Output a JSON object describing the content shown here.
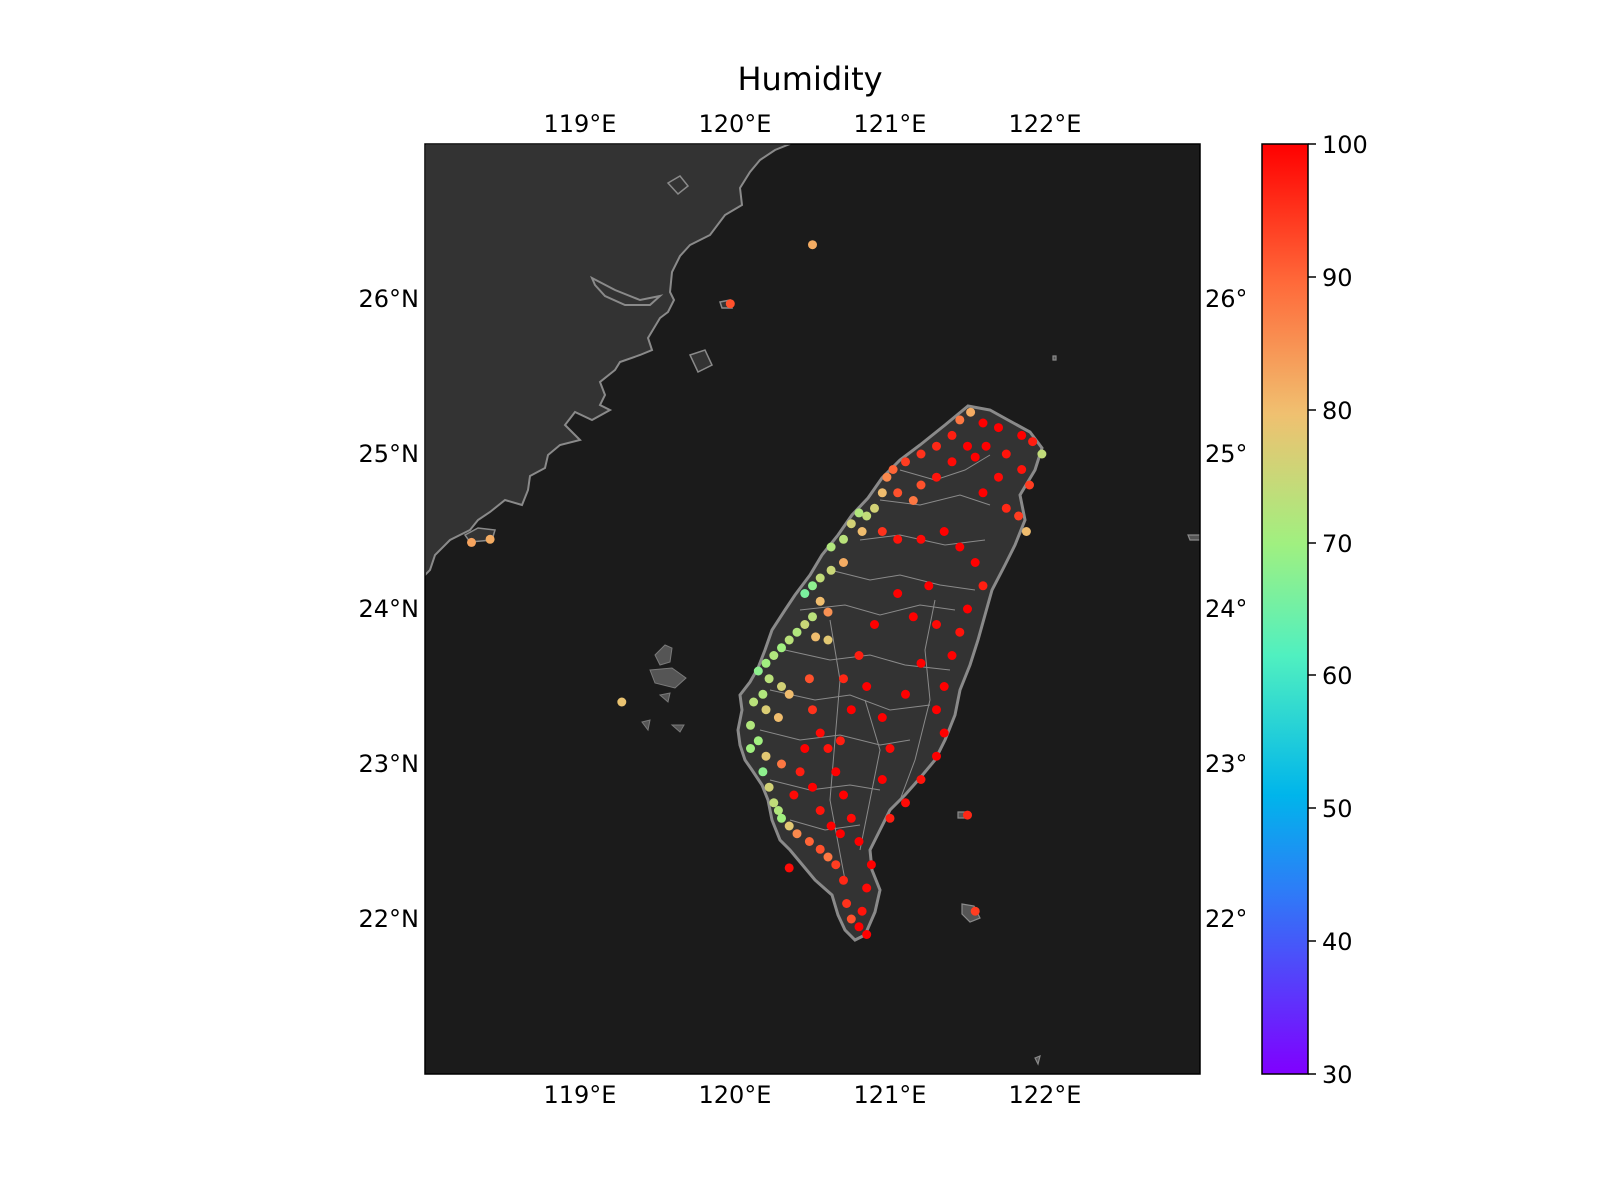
{
  "title": "Humidity",
  "map": {
    "lon_range": [
      118.0,
      123.0
    ],
    "lat_range": [
      21.0,
      27.0
    ],
    "lon_ticks": [
      "119°E",
      "120°E",
      "121°E",
      "122°E"
    ],
    "lat_ticks": [
      "26°N",
      "25°N",
      "24°N",
      "23°N",
      "22°N"
    ],
    "ocean_color": "#1b1b1b",
    "land_color": "#333333",
    "coastline_color": "#8a8a8a",
    "boundary_color": "#8a8a8a"
  },
  "colorbar": {
    "min": 30,
    "max": 100,
    "ticks": [
      "100",
      "90",
      "80",
      "70",
      "60",
      "50",
      "40",
      "30"
    ],
    "colormap": "rainbow"
  },
  "chart_data": {
    "type": "scatter",
    "title": "Humidity",
    "xlabel": "",
    "ylabel": "",
    "xlim": [
      118.0,
      123.0
    ],
    "ylim": [
      21.0,
      27.0
    ],
    "grid": false,
    "points": [
      [
        120.5,
        26.35,
        82
      ],
      [
        119.97,
        25.97,
        92
      ],
      [
        118.42,
        24.45,
        82
      ],
      [
        118.3,
        24.43,
        83
      ],
      [
        119.27,
        23.4,
        79
      ],
      [
        121.5,
        22.67,
        96
      ],
      [
        121.55,
        22.05,
        94
      ],
      [
        120.35,
        22.33,
        99
      ],
      [
        121.52,
        25.27,
        82
      ],
      [
        121.45,
        25.22,
        88
      ],
      [
        121.6,
        25.2,
        100
      ],
      [
        121.7,
        25.17,
        100
      ],
      [
        121.85,
        25.12,
        100
      ],
      [
        121.92,
        25.08,
        97
      ],
      [
        121.98,
        25.0,
        74
      ],
      [
        121.4,
        25.12,
        97
      ],
      [
        121.3,
        25.05,
        96
      ],
      [
        121.2,
        25.0,
        95
      ],
      [
        121.1,
        24.95,
        94
      ],
      [
        121.02,
        24.9,
        90
      ],
      [
        120.98,
        24.85,
        86
      ],
      [
        121.5,
        25.05,
        100
      ],
      [
        121.55,
        24.98,
        100
      ],
      [
        121.62,
        25.05,
        100
      ],
      [
        121.75,
        25.0,
        98
      ],
      [
        121.85,
        24.9,
        98
      ],
      [
        121.9,
        24.8,
        94
      ],
      [
        121.7,
        24.85,
        99
      ],
      [
        121.6,
        24.75,
        100
      ],
      [
        121.75,
        24.65,
        96
      ],
      [
        121.83,
        24.6,
        94
      ],
      [
        121.88,
        24.5,
        80
      ],
      [
        121.4,
        24.95,
        99
      ],
      [
        121.3,
        24.85,
        98
      ],
      [
        121.2,
        24.8,
        92
      ],
      [
        121.15,
        24.7,
        88
      ],
      [
        121.05,
        24.75,
        92
      ],
      [
        120.95,
        24.75,
        80
      ],
      [
        120.9,
        24.65,
        76
      ],
      [
        120.85,
        24.6,
        74
      ],
      [
        120.8,
        24.62,
        72
      ],
      [
        120.75,
        24.55,
        76
      ],
      [
        120.82,
        24.5,
        80
      ],
      [
        120.7,
        24.45,
        73
      ],
      [
        120.62,
        24.4,
        72
      ],
      [
        120.95,
        24.5,
        95
      ],
      [
        121.05,
        24.45,
        98
      ],
      [
        121.2,
        24.45,
        99
      ],
      [
        121.35,
        24.5,
        100
      ],
      [
        121.45,
        24.4,
        100
      ],
      [
        121.55,
        24.3,
        100
      ],
      [
        121.6,
        24.15,
        97
      ],
      [
        121.5,
        24.0,
        100
      ],
      [
        121.45,
        23.85,
        98
      ],
      [
        121.4,
        23.7,
        100
      ],
      [
        121.35,
        23.5,
        100
      ],
      [
        121.3,
        23.35,
        100
      ],
      [
        121.35,
        23.2,
        100
      ],
      [
        121.3,
        23.05,
        100
      ],
      [
        121.2,
        22.9,
        98
      ],
      [
        121.1,
        22.75,
        99
      ],
      [
        121.0,
        22.65,
        97
      ],
      [
        120.7,
        24.3,
        82
      ],
      [
        120.62,
        24.25,
        75
      ],
      [
        120.55,
        24.2,
        74
      ],
      [
        120.5,
        24.15,
        68
      ],
      [
        120.45,
        24.1,
        66
      ],
      [
        120.55,
        24.05,
        80
      ],
      [
        120.6,
        23.98,
        85
      ],
      [
        120.5,
        23.95,
        73
      ],
      [
        120.45,
        23.9,
        75
      ],
      [
        120.4,
        23.85,
        72
      ],
      [
        120.52,
        23.82,
        80
      ],
      [
        120.6,
        23.8,
        78
      ],
      [
        120.35,
        23.8,
        73
      ],
      [
        120.3,
        23.75,
        70
      ],
      [
        120.25,
        23.7,
        72
      ],
      [
        120.2,
        23.65,
        70
      ],
      [
        120.15,
        23.6,
        68
      ],
      [
        120.22,
        23.55,
        73
      ],
      [
        120.3,
        23.5,
        76
      ],
      [
        120.35,
        23.45,
        80
      ],
      [
        120.18,
        23.45,
        72
      ],
      [
        120.12,
        23.4,
        73
      ],
      [
        120.2,
        23.35,
        77
      ],
      [
        120.28,
        23.3,
        80
      ],
      [
        120.1,
        23.25,
        72
      ],
      [
        120.15,
        23.15,
        70
      ],
      [
        120.1,
        23.1,
        70
      ],
      [
        120.2,
        23.05,
        78
      ],
      [
        120.3,
        23.0,
        88
      ],
      [
        120.18,
        22.95,
        68
      ],
      [
        120.22,
        22.85,
        76
      ],
      [
        120.25,
        22.75,
        74
      ],
      [
        120.28,
        22.7,
        72
      ],
      [
        120.3,
        22.65,
        70
      ],
      [
        120.35,
        22.6,
        78
      ],
      [
        120.4,
        22.55,
        86
      ],
      [
        120.48,
        22.5,
        90
      ],
      [
        120.55,
        22.45,
        92
      ],
      [
        120.6,
        22.4,
        88
      ],
      [
        120.65,
        22.35,
        94
      ],
      [
        120.7,
        22.25,
        96
      ],
      [
        120.72,
        22.1,
        95
      ],
      [
        120.75,
        22.0,
        92
      ],
      [
        120.8,
        21.95,
        100
      ],
      [
        120.85,
        21.9,
        100
      ],
      [
        120.82,
        22.05,
        98
      ],
      [
        120.85,
        22.2,
        99
      ],
      [
        120.88,
        22.35,
        100
      ],
      [
        120.8,
        22.5,
        100
      ],
      [
        120.75,
        22.65,
        99
      ],
      [
        120.7,
        22.8,
        100
      ],
      [
        120.65,
        22.95,
        100
      ],
      [
        120.6,
        23.1,
        98
      ],
      [
        120.55,
        23.2,
        99
      ],
      [
        120.5,
        23.35,
        95
      ],
      [
        120.48,
        23.55,
        92
      ],
      [
        120.8,
        23.7,
        97
      ],
      [
        120.9,
        23.9,
        100
      ],
      [
        120.85,
        23.5,
        100
      ],
      [
        120.95,
        23.3,
        100
      ],
      [
        121.0,
        23.1,
        99
      ],
      [
        120.95,
        22.9,
        100
      ],
      [
        121.1,
        23.45,
        100
      ],
      [
        121.2,
        23.65,
        100
      ],
      [
        121.15,
        23.95,
        100
      ],
      [
        121.05,
        24.1,
        100
      ],
      [
        121.25,
        24.15,
        100
      ],
      [
        121.3,
        23.9,
        99
      ],
      [
        120.7,
        23.55,
        96
      ],
      [
        120.75,
        23.35,
        100
      ],
      [
        120.68,
        23.15,
        97
      ],
      [
        120.45,
        23.1,
        100
      ],
      [
        120.42,
        22.95,
        97
      ],
      [
        120.38,
        22.8,
        99
      ],
      [
        120.5,
        22.85,
        100
      ],
      [
        120.55,
        22.7,
        98
      ],
      [
        120.62,
        22.6,
        100
      ],
      [
        120.68,
        22.55,
        100
      ]
    ]
  }
}
